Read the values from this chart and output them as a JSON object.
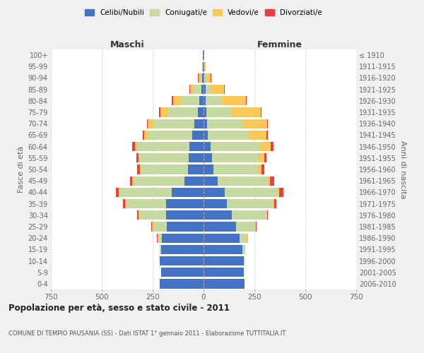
{
  "age_groups": [
    "100+",
    "95-99",
    "90-94",
    "85-89",
    "80-84",
    "75-79",
    "70-74",
    "65-69",
    "60-64",
    "55-59",
    "50-54",
    "45-49",
    "40-44",
    "35-39",
    "30-34",
    "25-29",
    "20-24",
    "15-19",
    "10-14",
    "5-9",
    "0-4"
  ],
  "birth_years": [
    "≤ 1910",
    "1911-1915",
    "1916-1920",
    "1921-1925",
    "1926-1930",
    "1931-1935",
    "1936-1940",
    "1941-1945",
    "1946-1950",
    "1951-1955",
    "1956-1960",
    "1961-1965",
    "1966-1970",
    "1971-1975",
    "1976-1980",
    "1981-1985",
    "1986-1990",
    "1991-1995",
    "1996-2000",
    "2001-2005",
    "2006-2010"
  ],
  "males": {
    "celibi": [
      2,
      4,
      8,
      12,
      20,
      28,
      45,
      55,
      70,
      72,
      78,
      95,
      155,
      185,
      185,
      180,
      205,
      210,
      215,
      210,
      215
    ],
    "coniugati": [
      0,
      2,
      10,
      35,
      95,
      150,
      200,
      220,
      255,
      240,
      230,
      250,
      255,
      195,
      130,
      68,
      22,
      5,
      0,
      0,
      0
    ],
    "vedovi": [
      0,
      2,
      8,
      20,
      35,
      35,
      28,
      18,
      12,
      6,
      5,
      5,
      5,
      5,
      5,
      5,
      0,
      0,
      0,
      0,
      0
    ],
    "divorziati": [
      0,
      0,
      2,
      3,
      5,
      5,
      6,
      6,
      12,
      12,
      12,
      12,
      17,
      12,
      6,
      5,
      3,
      0,
      0,
      0,
      0
    ]
  },
  "females": {
    "nubili": [
      2,
      2,
      5,
      10,
      12,
      15,
      18,
      22,
      35,
      42,
      48,
      68,
      105,
      115,
      140,
      160,
      178,
      192,
      198,
      198,
      203
    ],
    "coniugate": [
      0,
      2,
      6,
      22,
      78,
      125,
      175,
      200,
      240,
      228,
      220,
      248,
      262,
      225,
      168,
      95,
      38,
      12,
      2,
      0,
      0
    ],
    "vedove": [
      2,
      6,
      25,
      70,
      118,
      140,
      118,
      88,
      55,
      28,
      18,
      12,
      6,
      6,
      3,
      3,
      2,
      0,
      0,
      0,
      0
    ],
    "divorziate": [
      0,
      0,
      2,
      2,
      3,
      4,
      6,
      6,
      14,
      12,
      12,
      18,
      18,
      12,
      6,
      4,
      2,
      0,
      0,
      0,
      0
    ]
  },
  "colors": {
    "celibi": "#4472C4",
    "coniugati": "#C5D9A0",
    "vedovi": "#FAC858",
    "divorziati": "#E84040"
  },
  "xlim": 750,
  "title": "Popolazione per età, sesso e stato civile - 2011",
  "subtitle": "COMUNE DI TEMPIO PAUSANIA (SS) - Dati ISTAT 1° gennaio 2011 - Elaborazione TUTTITALIA.IT",
  "xlabel_left": "Maschi",
  "xlabel_right": "Femmine",
  "ylabel_left": "Fasce di età",
  "ylabel_right": "Anni di nascita",
  "legend_labels": [
    "Celibi/Nubili",
    "Coniugati/e",
    "Vedovi/e",
    "Divorziati/e"
  ],
  "bg_color": "#f0f0f0",
  "plot_bg_color": "#ffffff"
}
